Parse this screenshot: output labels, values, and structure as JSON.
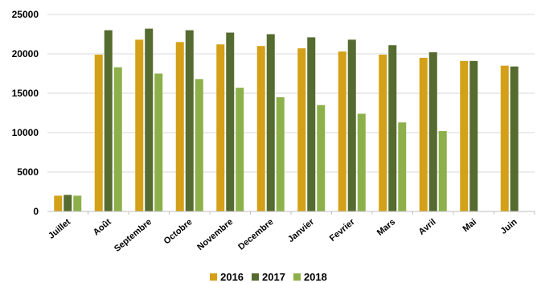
{
  "chart_data": {
    "type": "bar",
    "title": "",
    "xlabel": "",
    "ylabel": "",
    "ylim": [
      0,
      25000
    ],
    "yticks": [
      0,
      5000,
      10000,
      15000,
      20000,
      25000
    ],
    "grid": true,
    "legend_position": "bottom",
    "categories": [
      "Juillet",
      "Août",
      "Septembre",
      "Octobre",
      "Novembre",
      "Decembre",
      "Janvier",
      "Fevrier",
      "Mars",
      "Avril",
      "Mai",
      "Juin"
    ],
    "series": [
      {
        "name": "2016",
        "color": "#D4A017",
        "values": [
          2000,
          19900,
          21800,
          21500,
          21200,
          21000,
          20700,
          20300,
          19900,
          19500,
          19100,
          18500
        ]
      },
      {
        "name": "2017",
        "color": "#556B2F",
        "values": [
          2100,
          23000,
          23200,
          23000,
          22700,
          22500,
          22100,
          21800,
          21100,
          20200,
          19100,
          18400
        ]
      },
      {
        "name": "2018",
        "color": "#8DB04A",
        "values": [
          2000,
          18300,
          17500,
          16800,
          15700,
          14500,
          13500,
          12400,
          11300,
          10200,
          null,
          null
        ]
      }
    ]
  }
}
